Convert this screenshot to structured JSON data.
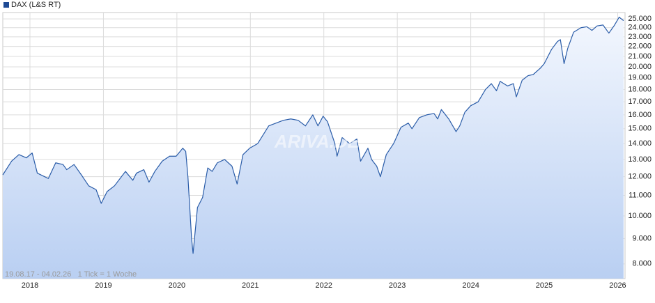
{
  "chart_data": {
    "type": "line",
    "legend": "DAX (L&S RT)",
    "footnote": "19.08.17 - 04.02.26   1 Tick = 1 Woche",
    "watermark": "ARIVA.DE",
    "log_scale": true,
    "grid": true,
    "x": [
      2017.63,
      2017.75,
      2017.85,
      2017.95,
      2018.03,
      2018.1,
      2018.2,
      2018.25,
      2018.35,
      2018.45,
      2018.5,
      2018.6,
      2018.7,
      2018.8,
      2018.9,
      2018.97,
      2019.05,
      2019.15,
      2019.3,
      2019.4,
      2019.45,
      2019.55,
      2019.62,
      2019.7,
      2019.8,
      2019.9,
      2019.99,
      2020.08,
      2020.12,
      2020.15,
      2020.2,
      2020.22,
      2020.28,
      2020.35,
      2020.42,
      2020.48,
      2020.55,
      2020.65,
      2020.75,
      2020.82,
      2020.9,
      2020.99,
      2021.1,
      2021.25,
      2021.35,
      2021.45,
      2021.55,
      2021.65,
      2021.75,
      2021.85,
      2021.92,
      2021.99,
      2022.05,
      2022.15,
      2022.18,
      2022.25,
      2022.35,
      2022.45,
      2022.5,
      2022.6,
      2022.65,
      2022.72,
      2022.77,
      2022.85,
      2022.95,
      2023.05,
      2023.15,
      2023.2,
      2023.3,
      2023.4,
      2023.5,
      2023.55,
      2023.6,
      2023.7,
      2023.8,
      2023.85,
      2023.92,
      2024.0,
      2024.1,
      2024.2,
      2024.28,
      2024.35,
      2024.4,
      2024.5,
      2024.58,
      2024.62,
      2024.7,
      2024.78,
      2024.85,
      2024.95,
      2025.0,
      2025.1,
      2025.18,
      2025.22,
      2025.27,
      2025.32,
      2025.4,
      2025.5,
      2025.58,
      2025.65,
      2025.72,
      2025.8,
      2025.88,
      2025.95,
      2026.02,
      2026.08
    ],
    "series": [
      {
        "name": "DAX (L&S RT)",
        "color": "#2a5ca8",
        "values": [
          12100,
          12900,
          13300,
          13100,
          13400,
          12200,
          12000,
          11900,
          12800,
          12700,
          12400,
          12700,
          12100,
          11500,
          11300,
          10600,
          11200,
          11500,
          12300,
          11800,
          12200,
          12400,
          11700,
          12300,
          12900,
          13200,
          13200,
          13700,
          13500,
          12000,
          9000,
          8400,
          10400,
          10900,
          12500,
          12300,
          12800,
          13000,
          12600,
          11600,
          13300,
          13700,
          14000,
          15200,
          15400,
          15600,
          15700,
          15600,
          15200,
          16000,
          15200,
          15900,
          15500,
          14000,
          13200,
          14400,
          14000,
          14300,
          12900,
          13700,
          13000,
          12600,
          12000,
          13300,
          14000,
          15100,
          15400,
          15000,
          15800,
          16000,
          16100,
          15700,
          16400,
          15700,
          14800,
          15200,
          16200,
          16700,
          17000,
          18000,
          18500,
          17900,
          18700,
          18300,
          18500,
          17400,
          18800,
          19200,
          19300,
          19900,
          20300,
          21700,
          22500,
          22700,
          20300,
          21800,
          23500,
          24000,
          24100,
          23700,
          24200,
          24300,
          23400,
          24200,
          25200,
          24800
        ]
      }
    ],
    "xlim": [
      2017.63,
      2026.1
    ],
    "xticks": [
      2018,
      2019,
      2020,
      2021,
      2022,
      2023,
      2024,
      2025,
      2026
    ],
    "ylim": [
      7470,
      25750
    ],
    "yticks": [
      {
        "value": 8000,
        "label": "8.000"
      },
      {
        "value": 9000,
        "label": "9.000"
      },
      {
        "value": 10000,
        "label": "10.000"
      },
      {
        "value": 11000,
        "label": "11.000"
      },
      {
        "value": 12000,
        "label": "12.000"
      },
      {
        "value": 13000,
        "label": "13.000"
      },
      {
        "value": 14000,
        "label": "14.000"
      },
      {
        "value": 15000,
        "label": "15.000"
      },
      {
        "value": 16000,
        "label": "16.000"
      },
      {
        "value": 17000,
        "label": "17.000"
      },
      {
        "value": 18000,
        "label": "18.000"
      },
      {
        "value": 19000,
        "label": "19.000"
      },
      {
        "value": 20000,
        "label": "20.000"
      },
      {
        "value": 21000,
        "label": "21.000"
      },
      {
        "value": 22000,
        "label": "22.000"
      },
      {
        "value": 23000,
        "label": "23.000"
      },
      {
        "value": 24000,
        "label": "24.000"
      },
      {
        "value": 25000,
        "label": "25.000"
      }
    ]
  }
}
